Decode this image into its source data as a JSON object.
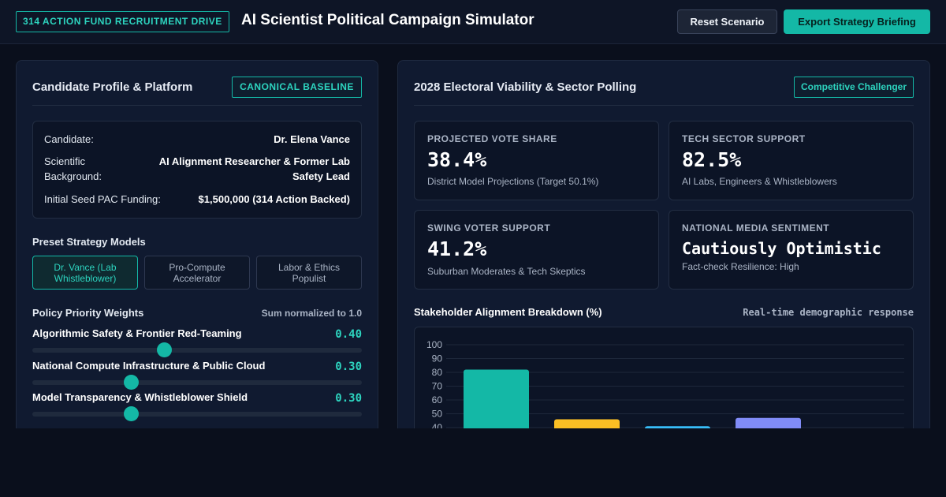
{
  "header": {
    "badge": "314 ACTION FUND RECRUITMENT DRIVE",
    "title": "AI Scientist Political Campaign Simulator",
    "reset_label": "Reset Scenario",
    "export_label": "Export Strategy Briefing"
  },
  "profile_panel": {
    "title": "Candidate Profile & Platform",
    "tag": "CANONICAL BASELINE",
    "candidate_label": "Candidate:",
    "candidate_value": "Dr. Elena Vance",
    "background_label_1": "Scientific",
    "background_label_2": "Background:",
    "background_value_1": "AI Alignment Researcher & Former Lab",
    "background_value_2": "Safety Lead",
    "funding_label": "Initial Seed PAC Funding:",
    "funding_value": "$1,500,000 (314 Action Backed)",
    "presets_title": "Preset Strategy Models",
    "presets": [
      {
        "label": "Dr. Vance (Lab Whistleblower)",
        "active": true
      },
      {
        "label": "Pro-Compute Accelerator",
        "active": false
      },
      {
        "label": "Labor & Ethics Populist",
        "active": false
      }
    ],
    "weights_title": "Policy Priority Weights",
    "weights_note": "Sum normalized to 1.0",
    "weights": [
      {
        "label": "Algorithmic Safety & Frontier Red-Teaming",
        "value": 0.4,
        "display": "0.40"
      },
      {
        "label": "National Compute Infrastructure & Public Cloud",
        "value": 0.3,
        "display": "0.30"
      },
      {
        "label": "Model Transparency & Whistleblower Shield",
        "value": 0.3,
        "display": "0.30"
      }
    ]
  },
  "polling_panel": {
    "title": "2028 Electoral Viability & Sector Polling",
    "tag": "Competitive Challenger",
    "cards": [
      {
        "label": "PROJECTED VOTE SHARE",
        "value": "38.4%",
        "sub": "District Model Projections (Target 50.1%)"
      },
      {
        "label": "TECH SECTOR SUPPORT",
        "value": "82.5%",
        "sub": "AI Labs, Engineers & Whistleblowers"
      },
      {
        "label": "SWING VOTER SUPPORT",
        "value": "41.2%",
        "sub": "Suburban Moderates & Tech Skeptics"
      },
      {
        "label": "NATIONAL MEDIA SENTIMENT",
        "value": "Cautiously Optimistic",
        "sub": "Fact-check Resilience: High"
      }
    ],
    "chart_title": "Stakeholder Alignment Breakdown (%)",
    "chart_note": "Real-time demographic response"
  },
  "colors": {
    "accent": "#14b8a6",
    "bar_colors": [
      "#14b8a6",
      "#fbbf24",
      "#38bdf8",
      "#818cf8"
    ]
  },
  "chart_data": {
    "type": "bar",
    "title": "Stakeholder Alignment Breakdown (%)",
    "ylim": [
      0,
      100
    ],
    "yticks": [
      40,
      50,
      60,
      70,
      80,
      90,
      100
    ],
    "values": [
      82,
      46,
      41,
      47
    ],
    "grid": true
  }
}
